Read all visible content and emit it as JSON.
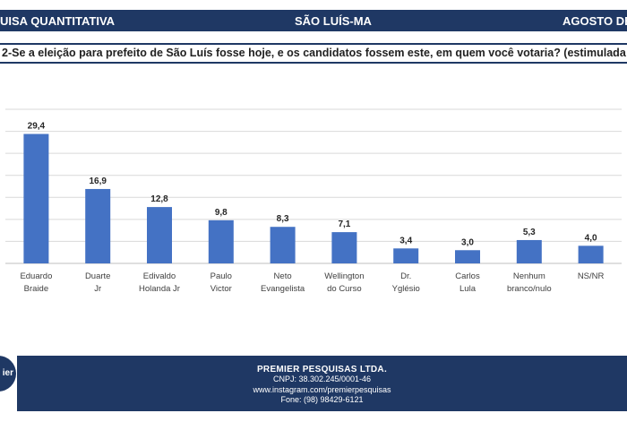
{
  "header": {
    "left": "UISA QUANTITATIVA",
    "center": "SÃO LUÍS-MA",
    "right": "AGOSTO DE"
  },
  "question": "2-Se a eleição para prefeito de São Luís fosse hoje, e os candidatos fossem este, em quem você votaria? (estimulada",
  "colors": {
    "bar": "#4472c4",
    "band": "#1f3864",
    "grid": "#d9d9d9"
  },
  "chart_data": {
    "type": "bar",
    "categories": [
      [
        "Eduardo",
        "Braide"
      ],
      [
        "Duarte",
        "Jr"
      ],
      [
        "Edivaldo",
        "Holanda Jr"
      ],
      [
        "Paulo",
        "Victor"
      ],
      [
        "Neto",
        "Evangelista"
      ],
      [
        "Wellington",
        "do Curso"
      ],
      [
        "Dr.",
        "Yglésio"
      ],
      [
        "Carlos",
        "Lula"
      ],
      [
        "Nenhum",
        "branco/nulo"
      ],
      [
        "NS/NR"
      ]
    ],
    "values": [
      29.4,
      16.9,
      12.8,
      9.8,
      8.3,
      7.1,
      3.4,
      3.0,
      5.3,
      4.0
    ],
    "value_labels": [
      "29,4",
      "16,9",
      "12,8",
      "9,8",
      "8,3",
      "7,1",
      "3,4",
      "3,0",
      "5,3",
      "4,0"
    ],
    "ylim": [
      0,
      35
    ],
    "grid": true
  },
  "footer": {
    "company": "PREMIER PESQUISAS LTDA.",
    "cnpj": "CNPJ: 38.302.245/0001-46",
    "instagram": "www.instagram.com/premierpesquisas",
    "phone": "Fone: (98) 98429-6121"
  },
  "logo": {
    "text": "ier"
  }
}
